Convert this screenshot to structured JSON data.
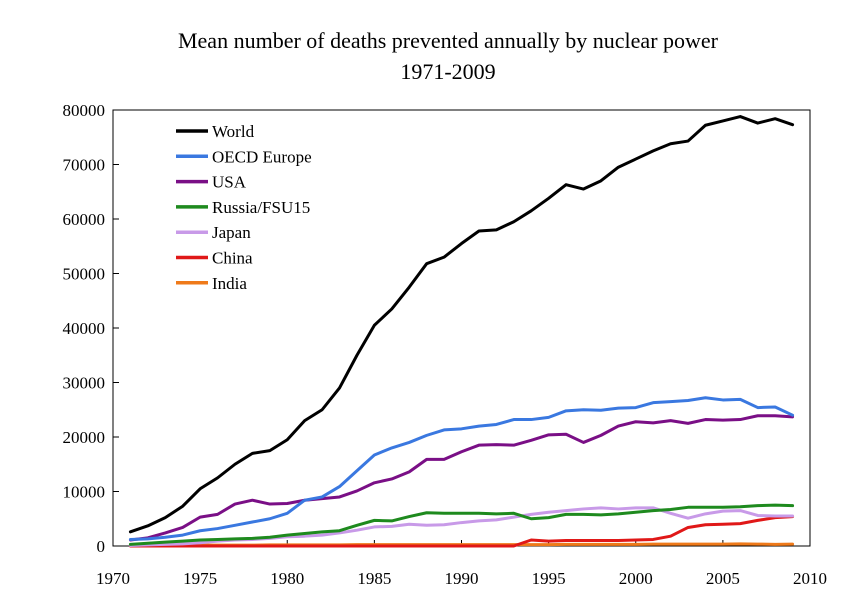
{
  "chart_data": {
    "type": "line",
    "title": "Mean number of deaths prevented annually by nuclear power",
    "subtitle": "1971-2009",
    "xlabel": "",
    "ylabel": "",
    "xlim": [
      1970,
      2010
    ],
    "ylim": [
      0,
      80000
    ],
    "xticks": [
      1970,
      1975,
      1980,
      1985,
      1990,
      1995,
      2000,
      2005,
      2010
    ],
    "yticks": [
      0,
      10000,
      20000,
      30000,
      40000,
      50000,
      60000,
      70000,
      80000
    ],
    "x": [
      1971,
      1972,
      1973,
      1974,
      1975,
      1976,
      1977,
      1978,
      1979,
      1980,
      1981,
      1982,
      1983,
      1984,
      1985,
      1986,
      1987,
      1988,
      1989,
      1990,
      1991,
      1992,
      1993,
      1994,
      1995,
      1996,
      1997,
      1998,
      1999,
      2000,
      2001,
      2002,
      2003,
      2004,
      2005,
      2006,
      2007,
      2008,
      2009
    ],
    "legend_position": "top-left",
    "series": [
      {
        "name": "World",
        "color": "#000000",
        "values": [
          2600,
          3700,
          5200,
          7300,
          10500,
          12500,
          15000,
          17000,
          17500,
          19500,
          23000,
          25000,
          29000,
          35000,
          40500,
          43500,
          47500,
          51800,
          53000,
          55500,
          57800,
          58000,
          59500,
          61500,
          63800,
          66300,
          65500,
          67000,
          69500,
          71000,
          72500,
          73800,
          74300,
          77200,
          78000,
          78800,
          77600,
          78400,
          77300
        ]
      },
      {
        "name": "OECD Europe",
        "color": "#3a78e0",
        "values": [
          1200,
          1300,
          1600,
          2000,
          2800,
          3200,
          3800,
          4400,
          5000,
          6000,
          8400,
          9000,
          10900,
          13800,
          16700,
          18000,
          19000,
          20300,
          21300,
          21500,
          22000,
          22300,
          23200,
          23200,
          23600,
          24800,
          25000,
          24900,
          25300,
          25400,
          26300,
          26500,
          26700,
          27200,
          26800,
          26900,
          25400,
          25500,
          24000
        ]
      },
      {
        "name": "USA",
        "color": "#7a0f86",
        "values": [
          1100,
          1500,
          2400,
          3400,
          5300,
          5800,
          7700,
          8400,
          7700,
          7800,
          8400,
          8700,
          9000,
          10100,
          11600,
          12300,
          13600,
          15900,
          15900,
          17300,
          18500,
          18600,
          18500,
          19400,
          20400,
          20500,
          19000,
          20300,
          22000,
          22800,
          22600,
          23000,
          22500,
          23200,
          23100,
          23200,
          23900,
          23900,
          23700
        ]
      },
      {
        "name": "Russia/FSU15",
        "color": "#1e8a1e",
        "values": [
          300,
          500,
          700,
          900,
          1100,
          1200,
          1300,
          1400,
          1600,
          2000,
          2300,
          2600,
          2800,
          3800,
          4700,
          4600,
          5400,
          6100,
          6000,
          6000,
          6000,
          5900,
          6000,
          5000,
          5200,
          5800,
          5800,
          5700,
          5900,
          6200,
          6500,
          6700,
          7100,
          7100,
          7100,
          7200,
          7400,
          7500,
          7400
        ]
      },
      {
        "name": "Japan",
        "color": "#c89ae8",
        "values": [
          100,
          200,
          300,
          400,
          600,
          900,
          1100,
          1200,
          1400,
          1700,
          1800,
          2000,
          2400,
          2900,
          3500,
          3600,
          4000,
          3800,
          3900,
          4300,
          4600,
          4800,
          5300,
          5800,
          6200,
          6500,
          6800,
          7000,
          6800,
          7000,
          7000,
          6000,
          5100,
          5900,
          6400,
          6500,
          5600,
          5500,
          5500
        ]
      },
      {
        "name": "China",
        "color": "#e01818",
        "values": [
          0,
          0,
          0,
          0,
          0,
          0,
          0,
          0,
          0,
          0,
          0,
          0,
          0,
          0,
          0,
          0,
          0,
          0,
          0,
          0,
          0,
          0,
          0,
          1100,
          900,
          1000,
          1000,
          1000,
          1000,
          1100,
          1200,
          1800,
          3400,
          3900,
          4000,
          4100,
          4700,
          5200,
          5400
        ]
      },
      {
        "name": "India",
        "color": "#ef7a1a",
        "values": [
          100,
          100,
          100,
          150,
          150,
          150,
          150,
          150,
          200,
          200,
          200,
          200,
          200,
          250,
          250,
          250,
          250,
          250,
          250,
          250,
          250,
          250,
          250,
          250,
          250,
          300,
          300,
          300,
          300,
          300,
          350,
          350,
          350,
          350,
          350,
          400,
          350,
          300,
          350
        ]
      }
    ]
  }
}
